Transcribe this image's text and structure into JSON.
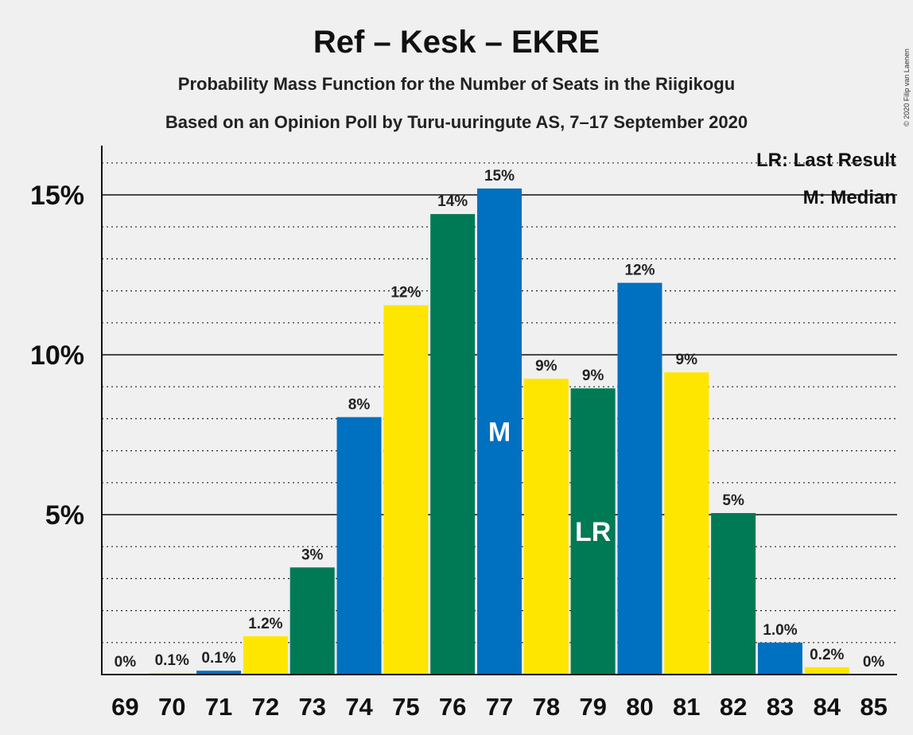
{
  "title": "Ref – Kesk – EKRE",
  "subtitle1": "Probability Mass Function for the Number of Seats in the Riigikogu",
  "subtitle2": "Based on an Opinion Poll by Turu-uuringute AS, 7–17 September 2020",
  "copyright": "© 2020 Filip van Laenen",
  "legend": {
    "last_result": "LR: Last Result",
    "median": "M: Median"
  },
  "colors": {
    "blue": "#0070c0",
    "yellow": "#ffe600",
    "green": "#007a55",
    "background": "#f0f0f0"
  },
  "chart_data": {
    "type": "bar",
    "categories": [
      "69",
      "70",
      "71",
      "72",
      "73",
      "74",
      "75",
      "76",
      "77",
      "78",
      "79",
      "80",
      "81",
      "82",
      "83",
      "84",
      "85"
    ],
    "values": [
      0,
      0.05,
      0.12,
      1.2,
      3.35,
      8.05,
      11.55,
      14.4,
      15.2,
      9.25,
      8.95,
      12.25,
      9.45,
      5.05,
      1.0,
      0.23,
      0
    ],
    "labels": [
      "0%",
      "0.1%",
      "0.1%",
      "1.2%",
      "3%",
      "8%",
      "12%",
      "14%",
      "15%",
      "9%",
      "9%",
      "12%",
      "9%",
      "5%",
      "1.0%",
      "0.2%",
      "0%"
    ],
    "bar_colors": [
      "blue",
      "yellow",
      "blue",
      "yellow",
      "green",
      "blue",
      "yellow",
      "green",
      "blue",
      "yellow",
      "green",
      "blue",
      "yellow",
      "green",
      "blue",
      "yellow",
      "green"
    ],
    "yticks": [
      {
        "value": 5,
        "label": "5%"
      },
      {
        "value": 10,
        "label": "10%"
      },
      {
        "value": 15,
        "label": "15%"
      }
    ],
    "ylim": [
      0,
      16.5
    ],
    "minor_grid_step": 1,
    "markers": [
      {
        "category": "77",
        "text": "M"
      },
      {
        "category": "79",
        "text": "LR"
      }
    ]
  }
}
